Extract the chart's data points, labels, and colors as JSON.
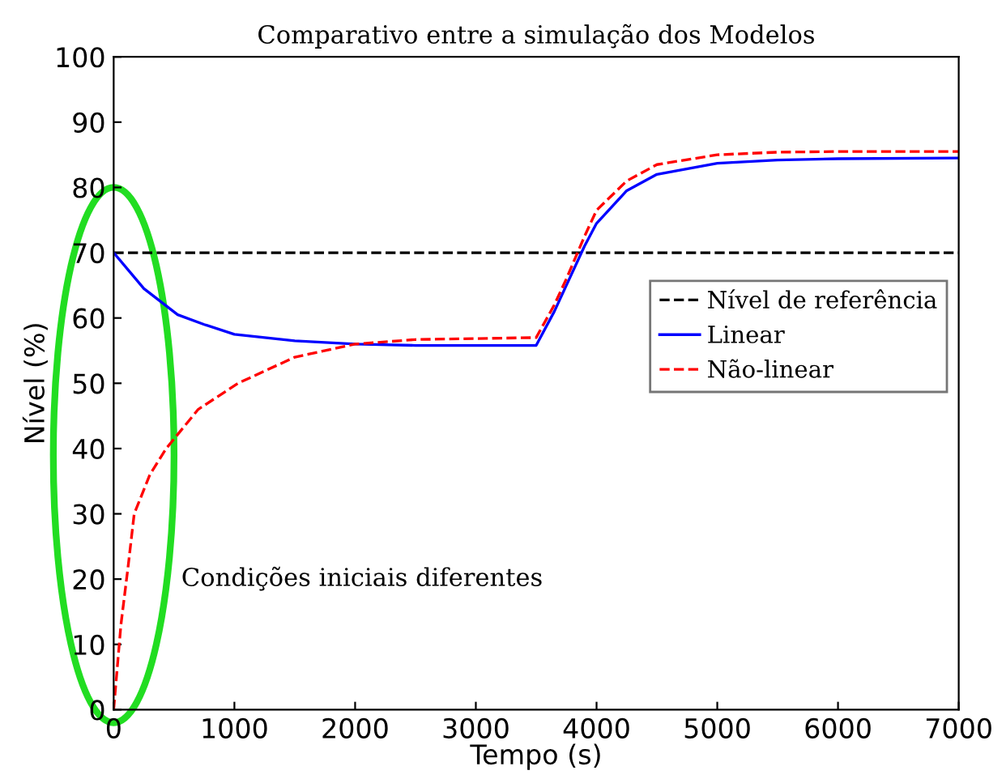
{
  "chart_data": {
    "type": "line",
    "title": "Comparativo entre a simulação dos Modelos",
    "xlabel": "Tempo (s)",
    "ylabel": "Nível (%)",
    "xlim": [
      0,
      7000
    ],
    "xticks": [
      0,
      1000,
      2000,
      3000,
      4000,
      5000,
      6000,
      7000
    ],
    "ylim": [
      0,
      100
    ],
    "yticks": [
      0,
      10,
      20,
      30,
      40,
      50,
      60,
      70,
      80,
      90,
      100
    ],
    "grid": false,
    "legend": "right",
    "annotations": [
      "Condições iniciais diferentes"
    ],
    "series": [
      {
        "name": "Nível de referência",
        "color": "#000000",
        "line_style": "dashed",
        "x": [
          0,
          7000
        ],
        "values": [
          70,
          70
        ]
      },
      {
        "name": "Linear",
        "color": "#0000ff",
        "line_style": "solid",
        "x": [
          0,
          250,
          530,
          750,
          1000,
          1500,
          2000,
          2500,
          3500,
          3650,
          3750,
          3900,
          4000,
          4250,
          4500,
          5000,
          5500,
          6000,
          7000
        ],
        "values": [
          70,
          64.5,
          60.5,
          59,
          57.5,
          56.5,
          56,
          55.8,
          55.8,
          61,
          65,
          71,
          74.5,
          79.5,
          82,
          83.7,
          84.2,
          84.4,
          84.5
        ]
      },
      {
        "name": "Não-linear",
        "color": "#ff0000",
        "line_style": "dashed",
        "x": [
          0,
          60,
          120,
          170,
          300,
          435,
          700,
          1030,
          1500,
          2000,
          2500,
          3500,
          3650,
          3750,
          3900,
          4000,
          4250,
          4500,
          5000,
          5500,
          6000,
          7000
        ],
        "values": [
          0,
          13,
          22,
          30,
          36,
          40,
          46,
          50,
          54,
          56,
          56.7,
          57,
          62,
          66,
          72.5,
          76.5,
          81,
          83.5,
          85,
          85.4,
          85.5,
          85.5
        ]
      }
    ]
  }
}
